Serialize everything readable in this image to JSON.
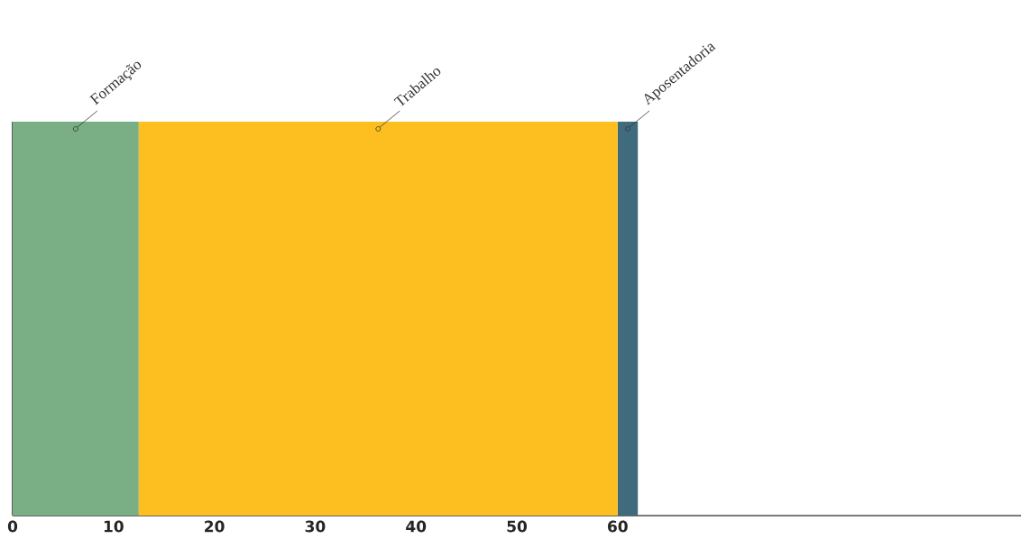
{
  "chart_data": {
    "type": "bar",
    "orientation": "horizontal",
    "stacked": true,
    "categories": [
      null
    ],
    "series": [
      {
        "name": "Formação",
        "color": "#7aae84",
        "values": [
          12.5
        ]
      },
      {
        "name": "Trabalho",
        "color": "#fdbf20",
        "values": [
          47.5
        ]
      },
      {
        "name": "Aposentadoria",
        "color": "#3f6b7d",
        "values": [
          2
        ]
      }
    ],
    "xlim": [
      0,
      100
    ],
    "xticks": [
      0,
      10,
      20,
      30,
      40,
      50,
      60
    ],
    "tick_labels": "x",
    "legend": false,
    "grid": false
  }
}
